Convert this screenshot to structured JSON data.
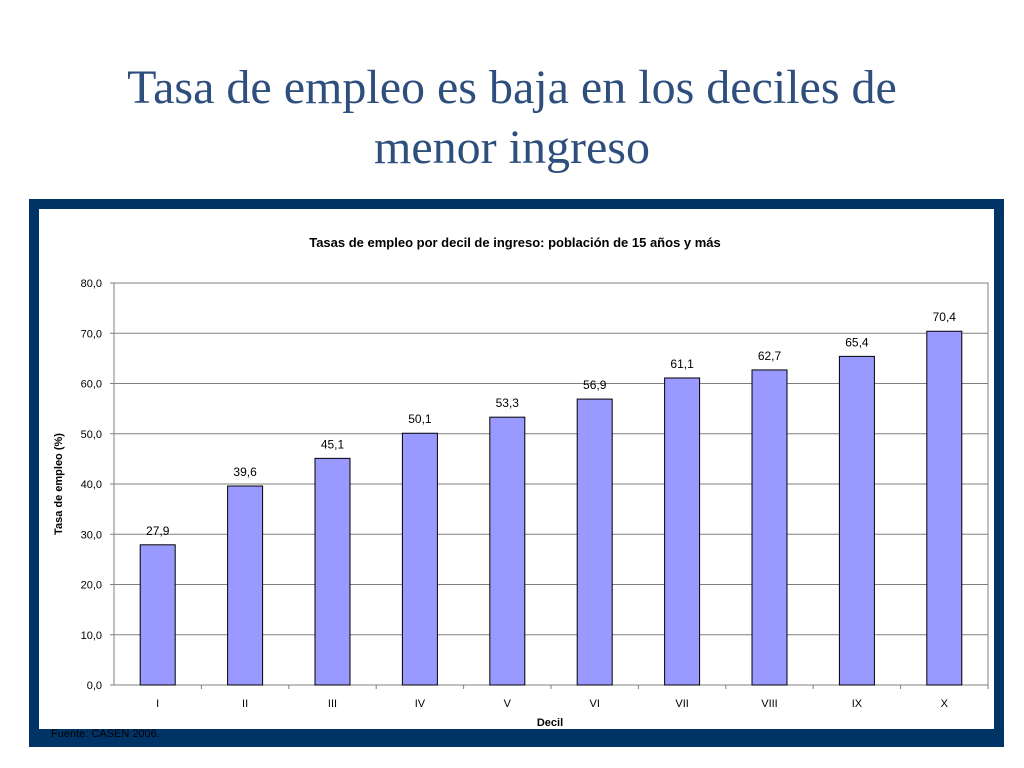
{
  "slide": {
    "title_line1": "Tasa de empleo es baja en los deciles de",
    "title_line2": "menor ingreso"
  },
  "chart_data": {
    "type": "bar",
    "title": "Tasas de empleo por decil de ingreso: población de 15 años y más",
    "xlabel": "Decil",
    "ylabel": "Tasa de empleo (%)",
    "categories": [
      "I",
      "II",
      "III",
      "IV",
      "V",
      "VI",
      "VII",
      "VIII",
      "IX",
      "X"
    ],
    "values": [
      27.9,
      39.6,
      45.1,
      50.1,
      53.3,
      56.9,
      61.1,
      62.7,
      65.4,
      70.4
    ],
    "data_labels": [
      "27,9",
      "39,6",
      "45,1",
      "50,1",
      "53,3",
      "56,9",
      "61,1",
      "62,7",
      "65,4",
      "70,4"
    ],
    "ylim": [
      0,
      80
    ],
    "yticks": [
      "0,0",
      "10,0",
      "20,0",
      "30,0",
      "40,0",
      "50,0",
      "60,0",
      "70,0",
      "80,0"
    ],
    "grid": true,
    "legend": "none",
    "source": "Fuente: CASEN 2006.",
    "colors": {
      "bar": "#9999ff",
      "panel": "#003366",
      "plot_background": "#ffffff",
      "title_text": "#2e4f7d"
    }
  }
}
